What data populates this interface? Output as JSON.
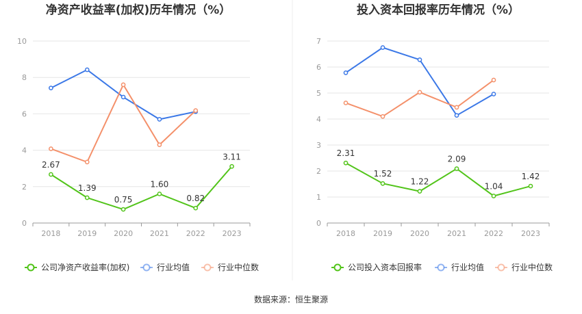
{
  "source_note": "数据来源：恒生聚源",
  "colors": {
    "company": "#52c41a",
    "industry_avg": "#3b78e7",
    "industry_median": "#f4906a",
    "grid": "#e6e6e6",
    "axis": "#999999"
  },
  "chart_data": [
    {
      "type": "line",
      "title": "净资产收益率(加权)历年情况（%）",
      "categories": [
        "2018",
        "2019",
        "2020",
        "2021",
        "2022",
        "2023"
      ],
      "ylim": [
        0,
        10
      ],
      "yticks": [
        "0",
        "2",
        "4",
        "6",
        "8",
        "10"
      ],
      "grid": true,
      "legend_position": "bottom",
      "series": [
        {
          "name": "公司净资产收益率(加权)",
          "values": [
            2.67,
            1.39,
            0.75,
            1.6,
            0.82,
            3.11
          ],
          "labels": [
            "2.67",
            "1.39",
            "0.75",
            "1.60",
            "0.82",
            "3.11"
          ]
        },
        {
          "name": "行业均值",
          "values": [
            7.42,
            8.42,
            6.92,
            5.7,
            6.12,
            null
          ]
        },
        {
          "name": "行业中位数",
          "values": [
            4.08,
            3.35,
            7.6,
            4.3,
            6.18,
            null
          ]
        }
      ]
    },
    {
      "type": "line",
      "title": "投入资本回报率历年情况（%）",
      "categories": [
        "2018",
        "2019",
        "2020",
        "2021",
        "2022",
        "2023"
      ],
      "ylim": [
        0,
        7
      ],
      "yticks": [
        "0",
        "1",
        "2",
        "3",
        "4",
        "5",
        "6",
        "7"
      ],
      "grid": true,
      "legend_position": "bottom",
      "series": [
        {
          "name": "公司投入资本回报率",
          "values": [
            2.31,
            1.52,
            1.22,
            2.09,
            1.04,
            1.42
          ],
          "labels": [
            "2.31",
            "1.52",
            "1.22",
            "2.09",
            "1.04",
            "1.42"
          ]
        },
        {
          "name": "行业均值",
          "values": [
            5.78,
            6.75,
            6.28,
            4.14,
            4.96,
            null
          ]
        },
        {
          "name": "行业中位数",
          "values": [
            4.62,
            4.1,
            5.03,
            4.45,
            5.5,
            null
          ]
        }
      ]
    }
  ]
}
